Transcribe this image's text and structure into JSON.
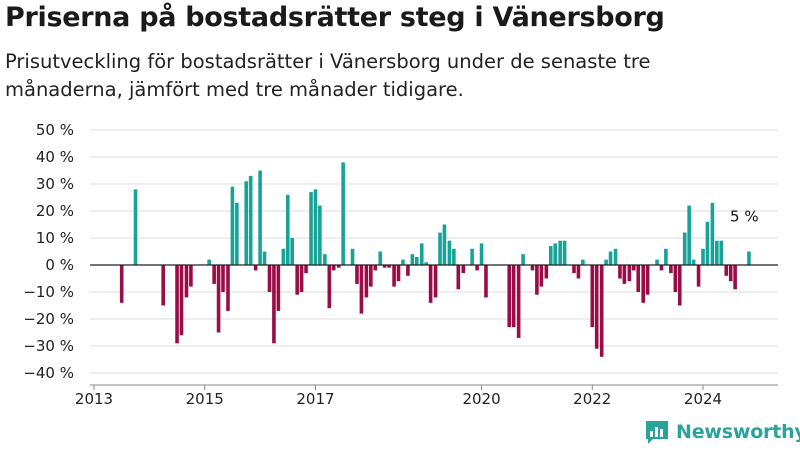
{
  "title": "Priserna på bostadsrätter steg i Vänersborg",
  "subtitle": "Prisutveckling för bostadsrätter i Vänersborg under de senaste tre månaderna, jämfört med tre månader tidigare.",
  "brand": "Newsworthy",
  "colors": {
    "positive": "#17a398",
    "negative": "#9b0b45",
    "grid": "#dddddd",
    "baseline": "#222222",
    "brand": "#2aa39a"
  },
  "chart_data": {
    "type": "bar",
    "title": "Priserna på bostadsrätter steg i Vänersborg",
    "subtitle": "Prisutveckling för bostadsrätter i Vänersborg under de senaste tre månaderna, jämfört med tre månader tidigare.",
    "ylim": [
      -40,
      50
    ],
    "yticks": [
      50,
      40,
      30,
      20,
      10,
      0,
      -10,
      -20,
      -30,
      -40
    ],
    "ytick_labels": [
      "50 %",
      "40 %",
      "30 %",
      "20 %",
      "10 %",
      "0 %",
      "−10 %",
      "−20 %",
      "−30 %",
      "−40 %"
    ],
    "xlim": [
      2013,
      2025.3
    ],
    "xticks": [
      2013,
      2015,
      2017,
      2020,
      2022,
      2024
    ],
    "xtick_labels": [
      "2013",
      "2015",
      "2017",
      "2020",
      "2022",
      "2024"
    ],
    "grid": "horizontal",
    "annotation": {
      "text": "5 %",
      "x": 2024.85,
      "y": 5
    },
    "series": [
      {
        "x": [
          2013.5,
          2013.75,
          2014.25,
          2014.5,
          2014.58,
          2014.67,
          2014.75,
          2014.83,
          2015.08,
          2015.17,
          2015.25,
          2015.33,
          2015.42,
          2015.5,
          2015.58,
          2015.67,
          2015.75,
          2015.83,
          2015.92,
          2016.0,
          2016.08,
          2016.17,
          2016.25,
          2016.33,
          2016.42,
          2016.5,
          2016.58,
          2016.67,
          2016.75,
          2016.83,
          2016.92,
          2017.0,
          2017.08,
          2017.17,
          2017.25,
          2017.33,
          2017.42,
          2017.5,
          2017.58,
          2017.67,
          2017.75,
          2017.83,
          2017.92,
          2018.0,
          2018.08,
          2018.17,
          2018.25,
          2018.33,
          2018.42,
          2018.5,
          2018.58,
          2018.67,
          2018.75,
          2018.83,
          2018.92,
          2019.0,
          2019.08,
          2019.17,
          2019.25,
          2019.33,
          2019.42,
          2019.5,
          2019.58,
          2019.67,
          2019.75,
          2019.83,
          2019.92,
          2020.0,
          2020.08,
          2020.17,
          2020.5,
          2020.58,
          2020.67,
          2020.75,
          2020.83,
          2020.92,
          2021.0,
          2021.08,
          2021.17,
          2021.25,
          2021.33,
          2021.42,
          2021.5,
          2021.58,
          2021.67,
          2021.75,
          2021.83,
          2022.0,
          2022.08,
          2022.17,
          2022.25,
          2022.33,
          2022.42,
          2022.5,
          2022.58,
          2022.67,
          2022.75,
          2022.83,
          2022.92,
          2023.0,
          2023.08,
          2023.17,
          2023.25,
          2023.33,
          2023.42,
          2023.5,
          2023.58,
          2023.67,
          2023.75,
          2023.83,
          2023.92,
          2024.0,
          2024.08,
          2024.17,
          2024.25,
          2024.33,
          2024.42,
          2024.5,
          2024.58,
          2024.67,
          2024.75,
          2024.83,
          2024.92
        ],
        "values": [
          -14,
          28,
          -15,
          -29,
          -26,
          -12,
          -8,
          0,
          2,
          -7,
          -25,
          -10,
          -17,
          29,
          23,
          0,
          31,
          33,
          -2,
          35,
          5,
          -10,
          -29,
          -17,
          6,
          26,
          10,
          -11,
          -10,
          -3,
          27,
          28,
          22,
          4,
          -16,
          -2,
          -1,
          38,
          0,
          6,
          -7,
          -18,
          -12,
          -8,
          -2,
          5,
          -1,
          -1,
          -8,
          -6,
          2,
          -4,
          4,
          3,
          8,
          1,
          -14,
          -12,
          12,
          15,
          9,
          6,
          -9,
          -3,
          0,
          6,
          -2,
          8,
          -12,
          0,
          -23,
          -23,
          -27,
          4,
          0,
          -2,
          -11,
          -8,
          -5,
          7,
          8,
          9,
          9,
          0,
          -3,
          -5,
          2,
          -23,
          -31,
          -34,
          2,
          5,
          6,
          -5,
          -7,
          -6,
          -2,
          -10,
          -14,
          -11,
          0,
          2,
          -2,
          6,
          -3,
          -10,
          -15,
          12,
          22,
          2,
          -8,
          6,
          16,
          23,
          9,
          9,
          -4,
          -6,
          -9,
          0,
          0,
          5,
          0
        ]
      }
    ]
  }
}
